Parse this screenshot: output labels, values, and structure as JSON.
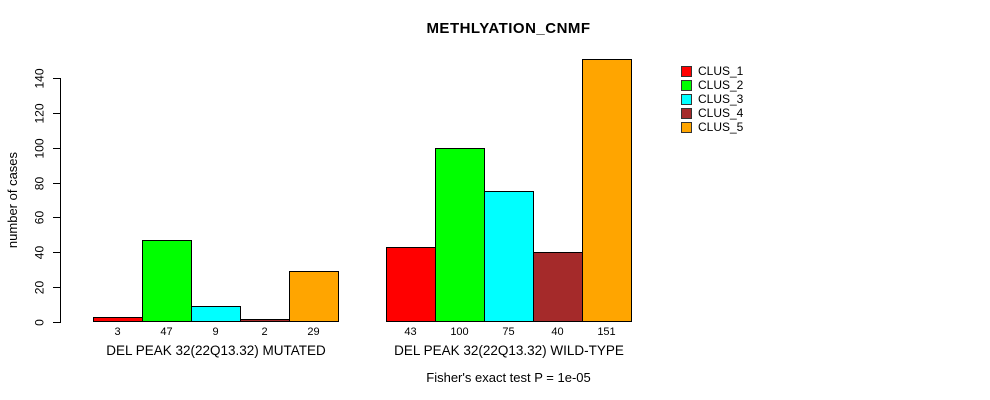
{
  "title": "METHLYATION_CNMF",
  "ylabel": "number of cases",
  "footer": "Fisher's exact test P = 1e-05",
  "legend": {
    "items": [
      {
        "label": "CLUS_1",
        "color": "#ff0000"
      },
      {
        "label": "CLUS_2",
        "color": "#00ff00"
      },
      {
        "label": "CLUS_3",
        "color": "#00ffff"
      },
      {
        "label": "CLUS_4",
        "color": "#a52a2a"
      },
      {
        "label": "CLUS_5",
        "color": "#ffa500"
      }
    ]
  },
  "chart_data": {
    "type": "bar",
    "title": "METHLYATION_CNMF",
    "xlabel": "",
    "ylabel": "number of cases",
    "annotation": "Fisher's exact test P = 1e-05",
    "categories": [
      "DEL PEAK 32(22Q13.32) MUTATED",
      "DEL PEAK 32(22Q13.32) WILD-TYPE"
    ],
    "series": [
      {
        "name": "CLUS_1",
        "color": "#ff0000",
        "values": [
          3,
          43
        ]
      },
      {
        "name": "CLUS_2",
        "color": "#00ff00",
        "values": [
          47,
          100
        ]
      },
      {
        "name": "CLUS_3",
        "color": "#00ffff",
        "values": [
          9,
          75
        ]
      },
      {
        "name": "CLUS_4",
        "color": "#a52a2a",
        "values": [
          2,
          40
        ]
      },
      {
        "name": "CLUS_5",
        "color": "#ffa500",
        "values": [
          29,
          151
        ]
      }
    ],
    "bar_value_labels": [
      [
        3,
        47,
        9,
        2,
        29
      ],
      [
        43,
        100,
        75,
        40,
        151
      ]
    ],
    "yticks": [
      0,
      20,
      40,
      60,
      80,
      100,
      120,
      140
    ],
    "ylim": [
      0,
      151
    ],
    "grid": false,
    "legend_position": "right",
    "bar_border_color": "#000000"
  }
}
